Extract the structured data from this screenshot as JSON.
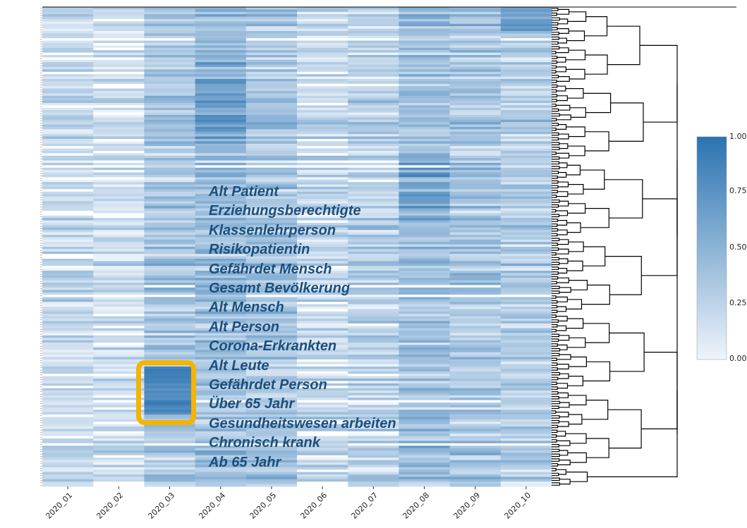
{
  "chart_data": {
    "type": "heatmap",
    "title": "",
    "xlabel": "",
    "ylabel": "",
    "x_categories": [
      "2020_01",
      "2020_02",
      "2020_03",
      "2020_04",
      "2020_05",
      "2020_06",
      "2020_07",
      "2020_08",
      "2020_09",
      "2020_10"
    ],
    "n_rows": 200,
    "colorbar": {
      "range": [
        0.0,
        1.0
      ],
      "ticks": [
        "0.00",
        "0.25",
        "0.50",
        "0.75",
        "1.00"
      ],
      "cmap": "white-to-blue"
    },
    "dendrogram": "right",
    "highlighted_labels": [
      "Alt Patient",
      "Erziehungsberechtigte",
      "Klassenlehrperson",
      "Risikopatientin",
      "Gefährdet Mensch",
      "Gesamt Bevölkerung",
      "Alt Mensch",
      "Alt Person",
      "Corona-Erkrankten",
      "Alt Leute",
      "Gefährdet Person",
      "Über 65 Jahr",
      "Gesundheitswesen arbeiten",
      "Chronisch krank",
      "Ab 65 Jahr"
    ],
    "highlight_box": {
      "column": "2020_03"
    }
  },
  "colors": {
    "low": "#eef4fb",
    "high": "#2b73b1",
    "highlight": "#f5b400",
    "label": "#1c4f7c",
    "dendrogram": "#000000"
  }
}
